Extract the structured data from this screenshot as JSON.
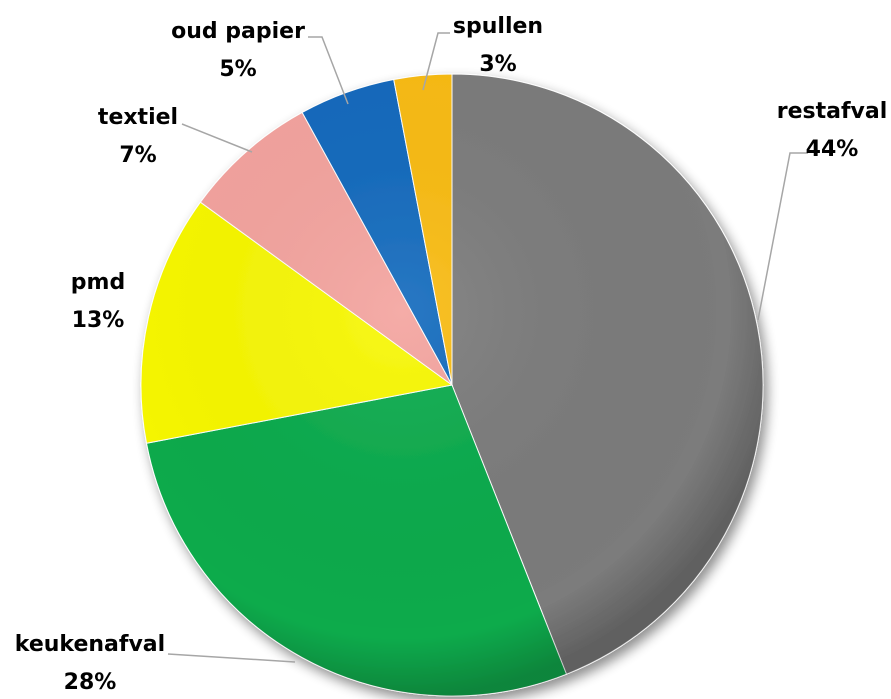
{
  "chart_data": {
    "type": "pie",
    "title": "",
    "slices": [
      {
        "label": "restafval",
        "percent_label": "44%",
        "value": 44,
        "color": "#7b7b7b"
      },
      {
        "label": "keukenafval",
        "percent_label": "28%",
        "value": 28,
        "color": "#0aab4c"
      },
      {
        "label": "pmd",
        "percent_label": "13%",
        "value": 13,
        "color": "#f8f800"
      },
      {
        "label": "textiel",
        "percent_label": "7%",
        "value": 7,
        "color": "#f4a39e"
      },
      {
        "label": "oud papier",
        "percent_label": "5%",
        "value": 5,
        "color": "#1169bd"
      },
      {
        "label": "spullen",
        "percent_label": "3%",
        "value": 3,
        "color": "#f9bb10"
      }
    ],
    "start_angle": "12 o'clock",
    "direction": "clockwise",
    "legend": "none"
  }
}
